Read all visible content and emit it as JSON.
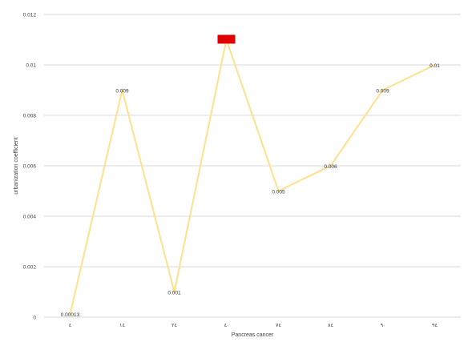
{
  "chart_data": {
    "type": "line",
    "title": "",
    "xlabel": "Pancreas cancer",
    "ylabel": "urbanization coefficient",
    "categories": [
      "٤",
      "١٤",
      "٢٤",
      "٤·",
      "٧٤",
      "٨٤",
      "٩·",
      "٩٤"
    ],
    "series": [
      {
        "values": [
          0.00013,
          0.009,
          0.001,
          0.011,
          0.005,
          0.006,
          0.009,
          0.01
        ],
        "labels": [
          "0.00013",
          "0.009",
          "0.001",
          "",
          "0.005",
          "0.006",
          "0.009",
          "0.01"
        ],
        "highlight_index": 3
      }
    ],
    "ylim": [
      0,
      0.012
    ],
    "yticks": [
      "0",
      "0.002",
      "0.004",
      "0.006",
      "0.008",
      "0.01",
      "0.012"
    ],
    "grid": "horizontal",
    "legend": "none",
    "line_color": "#ffe08c",
    "highlight_color": "#e00000",
    "grid_color": "#d9d9d9",
    "text_color": "#404040"
  }
}
